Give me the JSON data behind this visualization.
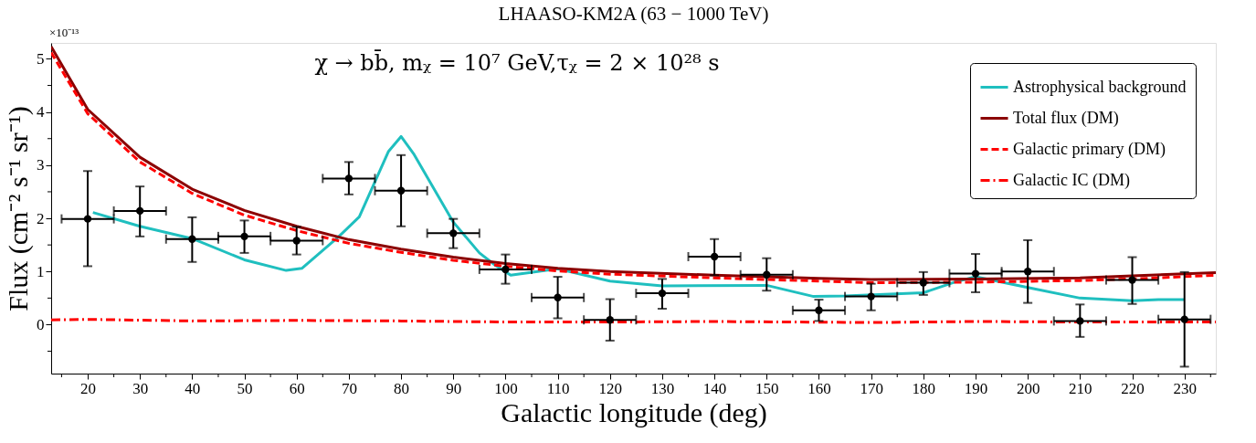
{
  "chart_data": {
    "type": "line",
    "title": "LHAASO-KM2A (63 − 1000 TeV)",
    "xlabel": "Galactic longitude (deg)",
    "ylabel": "Flux (cm⁻² s⁻¹ sr⁻¹)",
    "xlim": [
      13,
      236
    ],
    "ylim": [
      -0.92,
      5.3
    ],
    "xticks": [
      {
        "value": 15,
        "label": null
      },
      20,
      {
        "value": 25,
        "label": null
      },
      30,
      {
        "value": 35,
        "label": null
      },
      40,
      {
        "value": 45,
        "label": null
      },
      50,
      {
        "value": 55,
        "label": null
      },
      60,
      {
        "value": 65,
        "label": null
      },
      70,
      {
        "value": 75,
        "label": null
      },
      80,
      {
        "value": 85,
        "label": null
      },
      90,
      {
        "value": 95,
        "label": null
      },
      100,
      {
        "value": 105,
        "label": null
      },
      110,
      {
        "value": 115,
        "label": null
      },
      120,
      {
        "value": 125,
        "label": null
      },
      130,
      {
        "value": 135,
        "label": null
      },
      140,
      {
        "value": 145,
        "label": null
      },
      150,
      {
        "value": 155,
        "label": null
      },
      160,
      {
        "value": 165,
        "label": null
      },
      170,
      {
        "value": 175,
        "label": null
      },
      180,
      {
        "value": 185,
        "label": null
      },
      190,
      {
        "value": 195,
        "label": null
      },
      200,
      {
        "value": 205,
        "label": null
      },
      210,
      {
        "value": 215,
        "label": null
      },
      220,
      {
        "value": 225,
        "label": null
      },
      230,
      {
        "value": 235,
        "label": null
      }
    ],
    "yticks": [
      {
        "value": -0.5,
        "label": null
      },
      0,
      {
        "value": 0.5,
        "label": null
      },
      1,
      {
        "value": 1.5,
        "label": null
      },
      2,
      {
        "value": 2.5,
        "label": null
      },
      3,
      {
        "value": 3.5,
        "label": null
      },
      4,
      {
        "value": 4.5,
        "label": null
      },
      5
    ],
    "grid": false,
    "legend": "top right",
    "annotations": [
      "×10⁻¹³",
      "χ → bb̄, mᵪ = 10⁷ GeV,τᵪ = 2 × 10²⁸ s"
    ],
    "series": [
      {
        "name": "Astrophysical background",
        "color": "#1fbfbf",
        "type": "line",
        "line_style": "solid",
        "x": [
          21,
          30,
          40,
          50,
          58,
          61,
          68,
          72,
          77.6,
          80,
          82.5,
          90,
          95,
          98,
          101,
          110,
          120,
          130,
          150,
          159,
          165,
          180,
          186,
          190,
          200,
          210,
          220,
          225,
          230
        ],
        "values": [
          2.11,
          1.85,
          1.62,
          1.22,
          1.02,
          1.06,
          1.65,
          2.03,
          3.26,
          3.54,
          3.2,
          1.93,
          1.35,
          1.12,
          0.93,
          1.05,
          0.82,
          0.73,
          0.74,
          0.53,
          0.54,
          0.6,
          0.8,
          0.9,
          0.7,
          0.5,
          0.45,
          0.47,
          0.47
        ]
      },
      {
        "name": "Total flux (DM)",
        "color": "#8b0000",
        "type": "line",
        "line_style": "solid",
        "x": [
          13,
          20,
          30,
          40,
          50,
          60,
          70,
          80,
          90,
          100,
          110,
          120,
          140,
          160,
          170,
          190,
          210,
          220,
          236
        ],
        "values": [
          5.23,
          4.05,
          3.15,
          2.55,
          2.15,
          1.85,
          1.6,
          1.42,
          1.27,
          1.15,
          1.06,
          1.0,
          0.93,
          0.87,
          0.85,
          0.86,
          0.88,
          0.92,
          0.98
        ]
      },
      {
        "name": "Galactic primary (DM)",
        "color": "#ff0000",
        "type": "line",
        "line_style": "dashed",
        "x": [
          13,
          20,
          30,
          40,
          50,
          60,
          70,
          80,
          90,
          100,
          110,
          120,
          140,
          160,
          170,
          190,
          210,
          220,
          236
        ],
        "values": [
          5.12,
          3.97,
          3.06,
          2.47,
          2.06,
          1.77,
          1.53,
          1.36,
          1.21,
          1.1,
          1.01,
          0.95,
          0.88,
          0.82,
          0.79,
          0.8,
          0.83,
          0.86,
          0.93
        ]
      },
      {
        "name": "Galactic IC (DM)",
        "color": "#ff0000",
        "type": "line",
        "line_style": "dashdot",
        "x": [
          13,
          20,
          40,
          60,
          80,
          100,
          120,
          140,
          170,
          190,
          210,
          236
        ],
        "values": [
          0.09,
          0.1,
          0.07,
          0.08,
          0.07,
          0.05,
          0.05,
          0.06,
          0.04,
          0.06,
          0.05,
          0.05
        ]
      },
      {
        "color": "#000000",
        "type": "scatter",
        "marker": "circle",
        "x": [
          20,
          30,
          40,
          50,
          60,
          70,
          80,
          90,
          100,
          110,
          120,
          130,
          140,
          150,
          160,
          170,
          180,
          190,
          200,
          210,
          220,
          230
        ],
        "values": [
          1.99,
          2.14,
          1.61,
          1.66,
          1.58,
          2.75,
          2.52,
          1.72,
          1.04,
          0.51,
          0.09,
          0.59,
          1.28,
          0.94,
          0.27,
          0.53,
          0.79,
          0.96,
          1.0,
          0.07,
          0.84,
          0.1
        ],
        "errors": [
          [
            1.1,
            2.89
          ],
          [
            1.66,
            2.6
          ],
          [
            1.18,
            2.02
          ],
          [
            1.35,
            1.96
          ],
          [
            1.32,
            1.84
          ],
          [
            2.45,
            3.06
          ],
          [
            1.85,
            3.19
          ],
          [
            1.44,
            1.99
          ],
          [
            0.77,
            1.32
          ],
          [
            0.12,
            0.9
          ],
          [
            -0.3,
            0.48
          ],
          [
            0.3,
            0.86
          ],
          [
            0.93,
            1.61
          ],
          [
            0.64,
            1.25
          ],
          [
            0.07,
            0.47
          ],
          [
            0.27,
            0.77
          ],
          [
            0.56,
            0.99
          ],
          [
            0.61,
            1.33
          ],
          [
            0.41,
            1.59
          ],
          [
            -0.23,
            0.38
          ],
          [
            0.39,
            1.27
          ],
          [
            -0.79,
            0.99
          ]
        ],
        "xerrors": [
          5,
          5,
          5,
          5,
          5,
          5,
          5,
          5,
          5,
          5,
          5,
          5,
          5,
          5,
          5,
          5,
          5,
          5,
          5,
          5,
          5,
          5
        ]
      }
    ]
  }
}
